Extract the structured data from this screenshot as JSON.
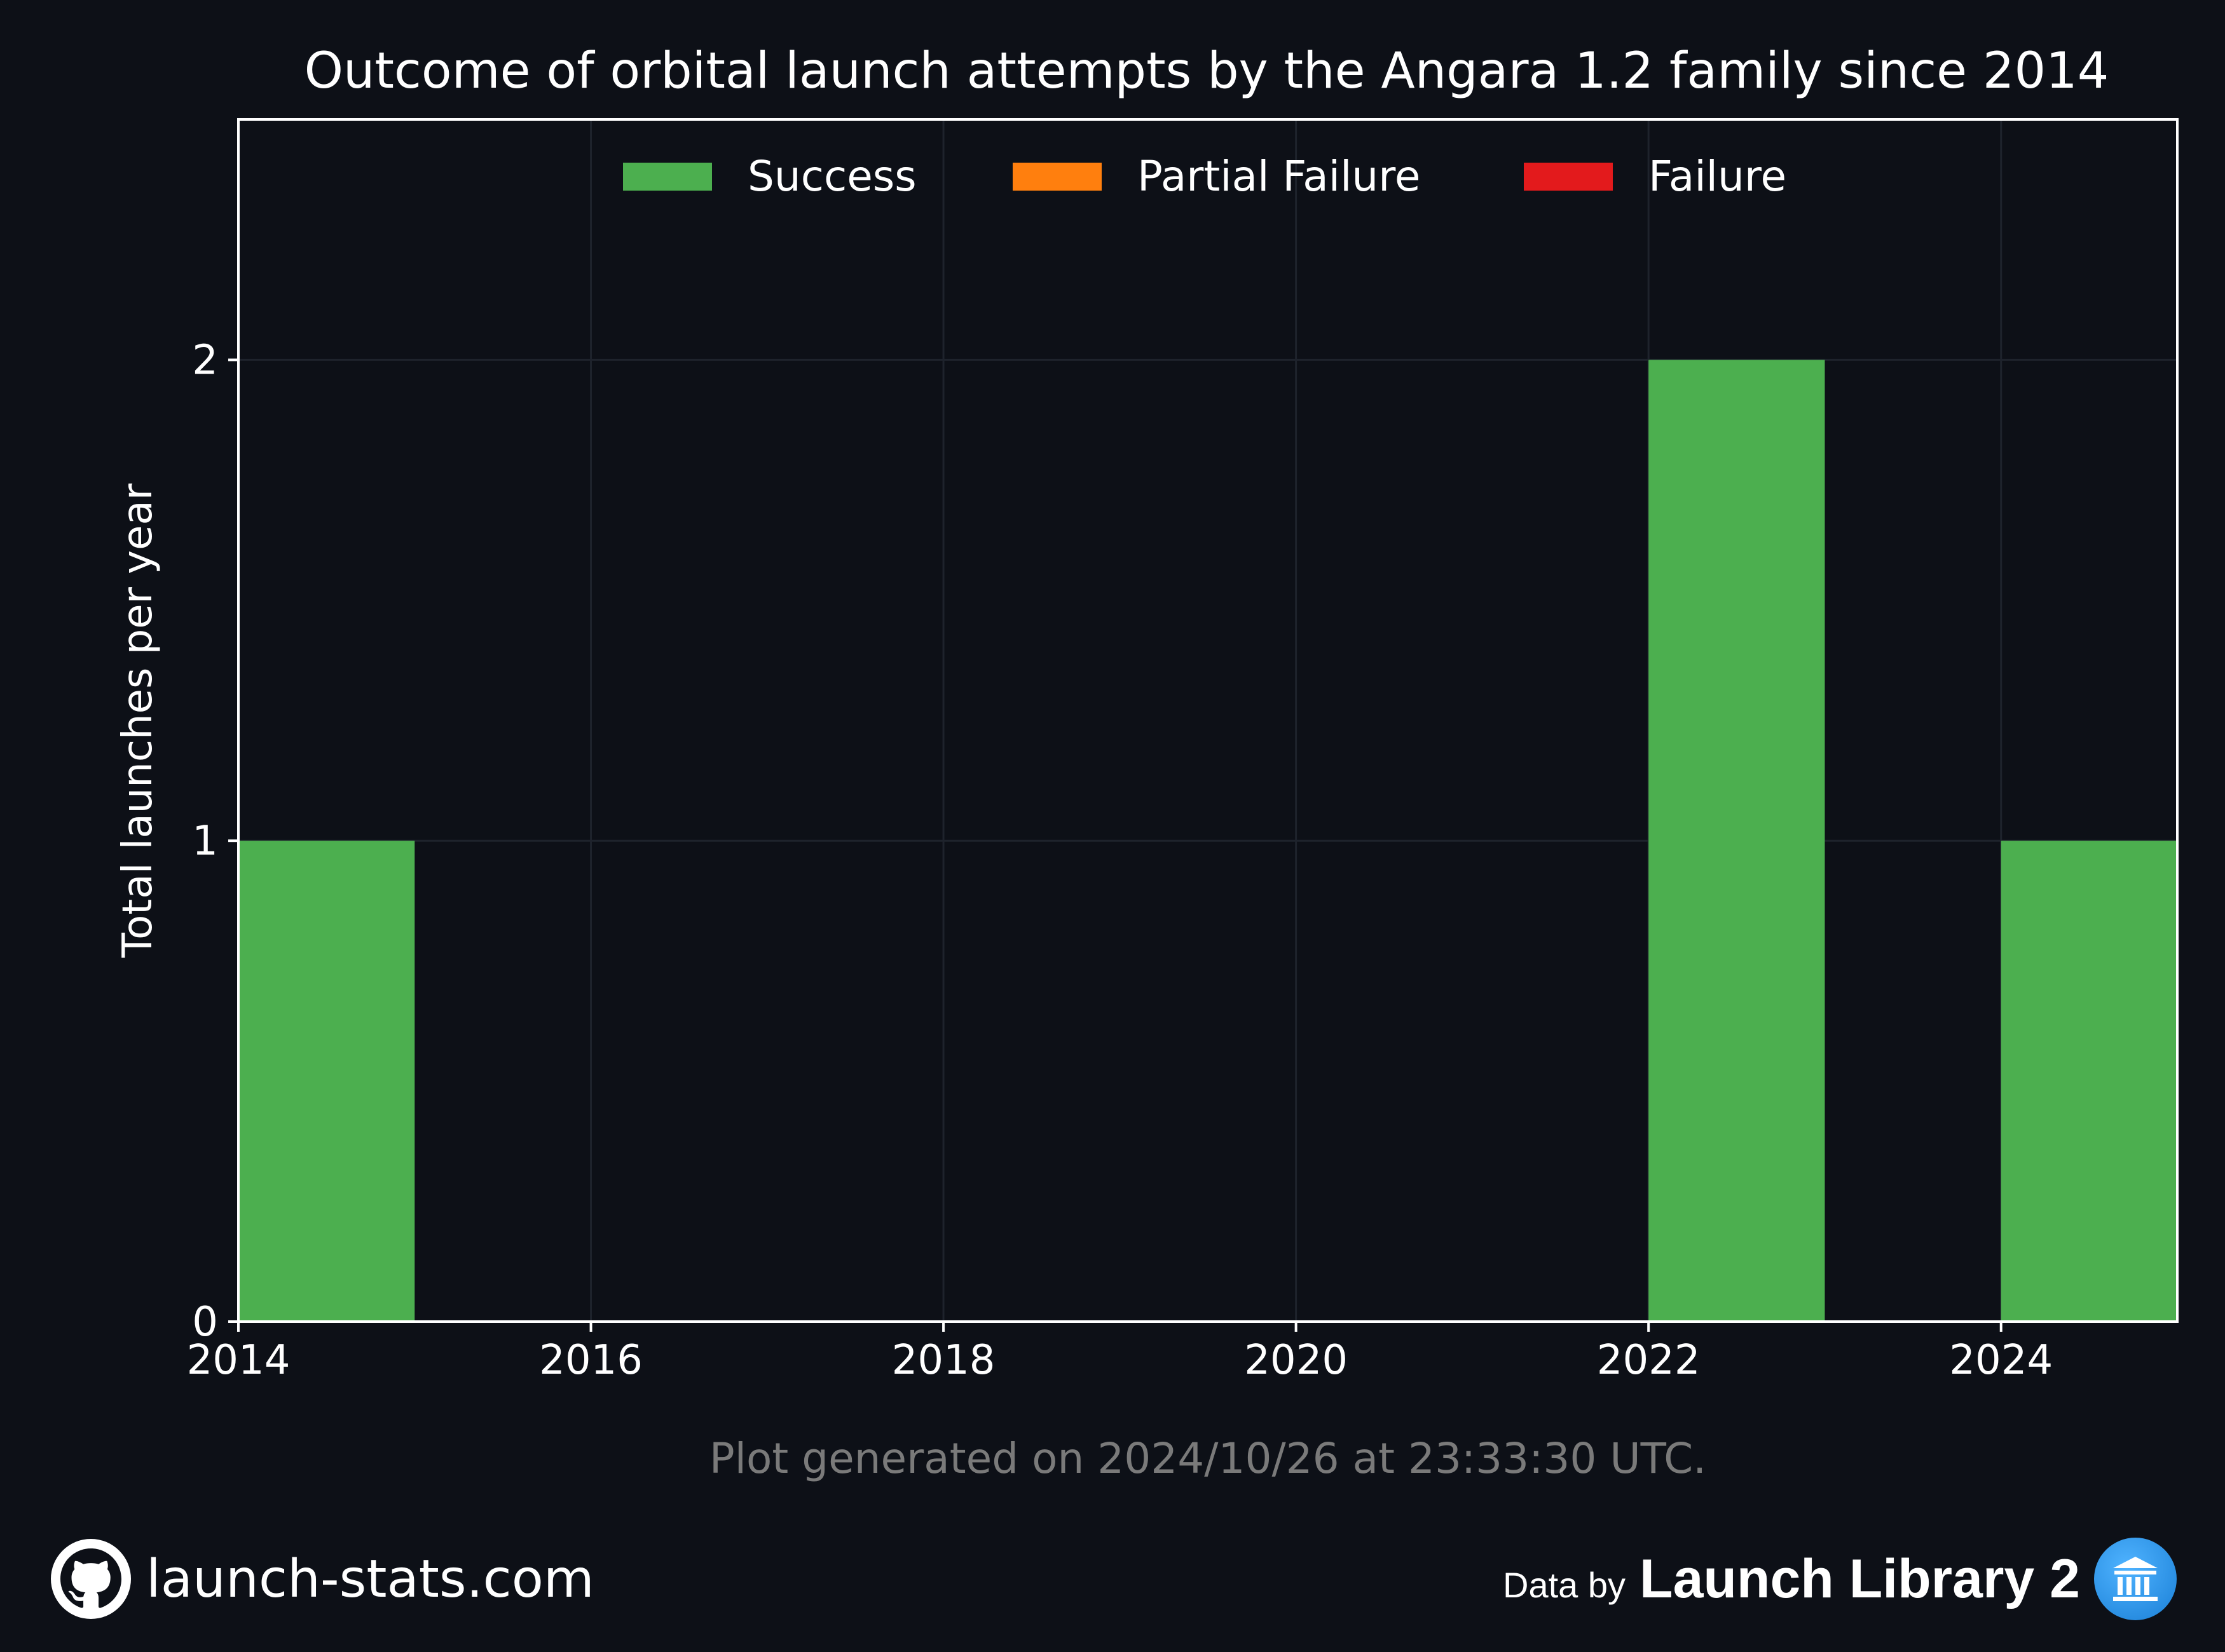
{
  "chart_data": {
    "type": "bar",
    "title": "Outcome of orbital launch attempts by the Angara 1.2 family since 2014",
    "xlabel": "",
    "ylabel": "Total launches per year",
    "x": [
      2014,
      2015,
      2016,
      2017,
      2018,
      2019,
      2020,
      2021,
      2022,
      2023,
      2024
    ],
    "series": [
      {
        "name": "Success",
        "color": "#4caf4f",
        "values": [
          1,
          0,
          0,
          0,
          0,
          0,
          0,
          0,
          2,
          0,
          1
        ]
      },
      {
        "name": "Partial Failure",
        "color": "#ff7f0e",
        "values": [
          0,
          0,
          0,
          0,
          0,
          0,
          0,
          0,
          0,
          0,
          0
        ]
      },
      {
        "name": "Failure",
        "color": "#e31a1c",
        "values": [
          0,
          0,
          0,
          0,
          0,
          0,
          0,
          0,
          0,
          0,
          0
        ]
      }
    ],
    "stacked": true,
    "xlim": [
      2014,
      2025
    ],
    "ylim": [
      0,
      2.5
    ],
    "xticks": [
      "2014",
      "2016",
      "2018",
      "2020",
      "2022",
      "2024"
    ],
    "yticks": [
      "0",
      "1",
      "2"
    ],
    "grid": true,
    "legend_position": "top-center"
  },
  "note": "Plot generated on 2024/10/26 at 23:33:30 UTC.",
  "footer": {
    "site": "launch-stats.com",
    "site_icon": "github-icon",
    "data_prefix": "Data by",
    "data_source": "Launch Library 2",
    "data_icon": "launch-library-icon"
  },
  "colors": {
    "background": "#0d1017",
    "axes": "#ffffff",
    "grid": "#1e232c",
    "note": "#7a7a7a"
  }
}
